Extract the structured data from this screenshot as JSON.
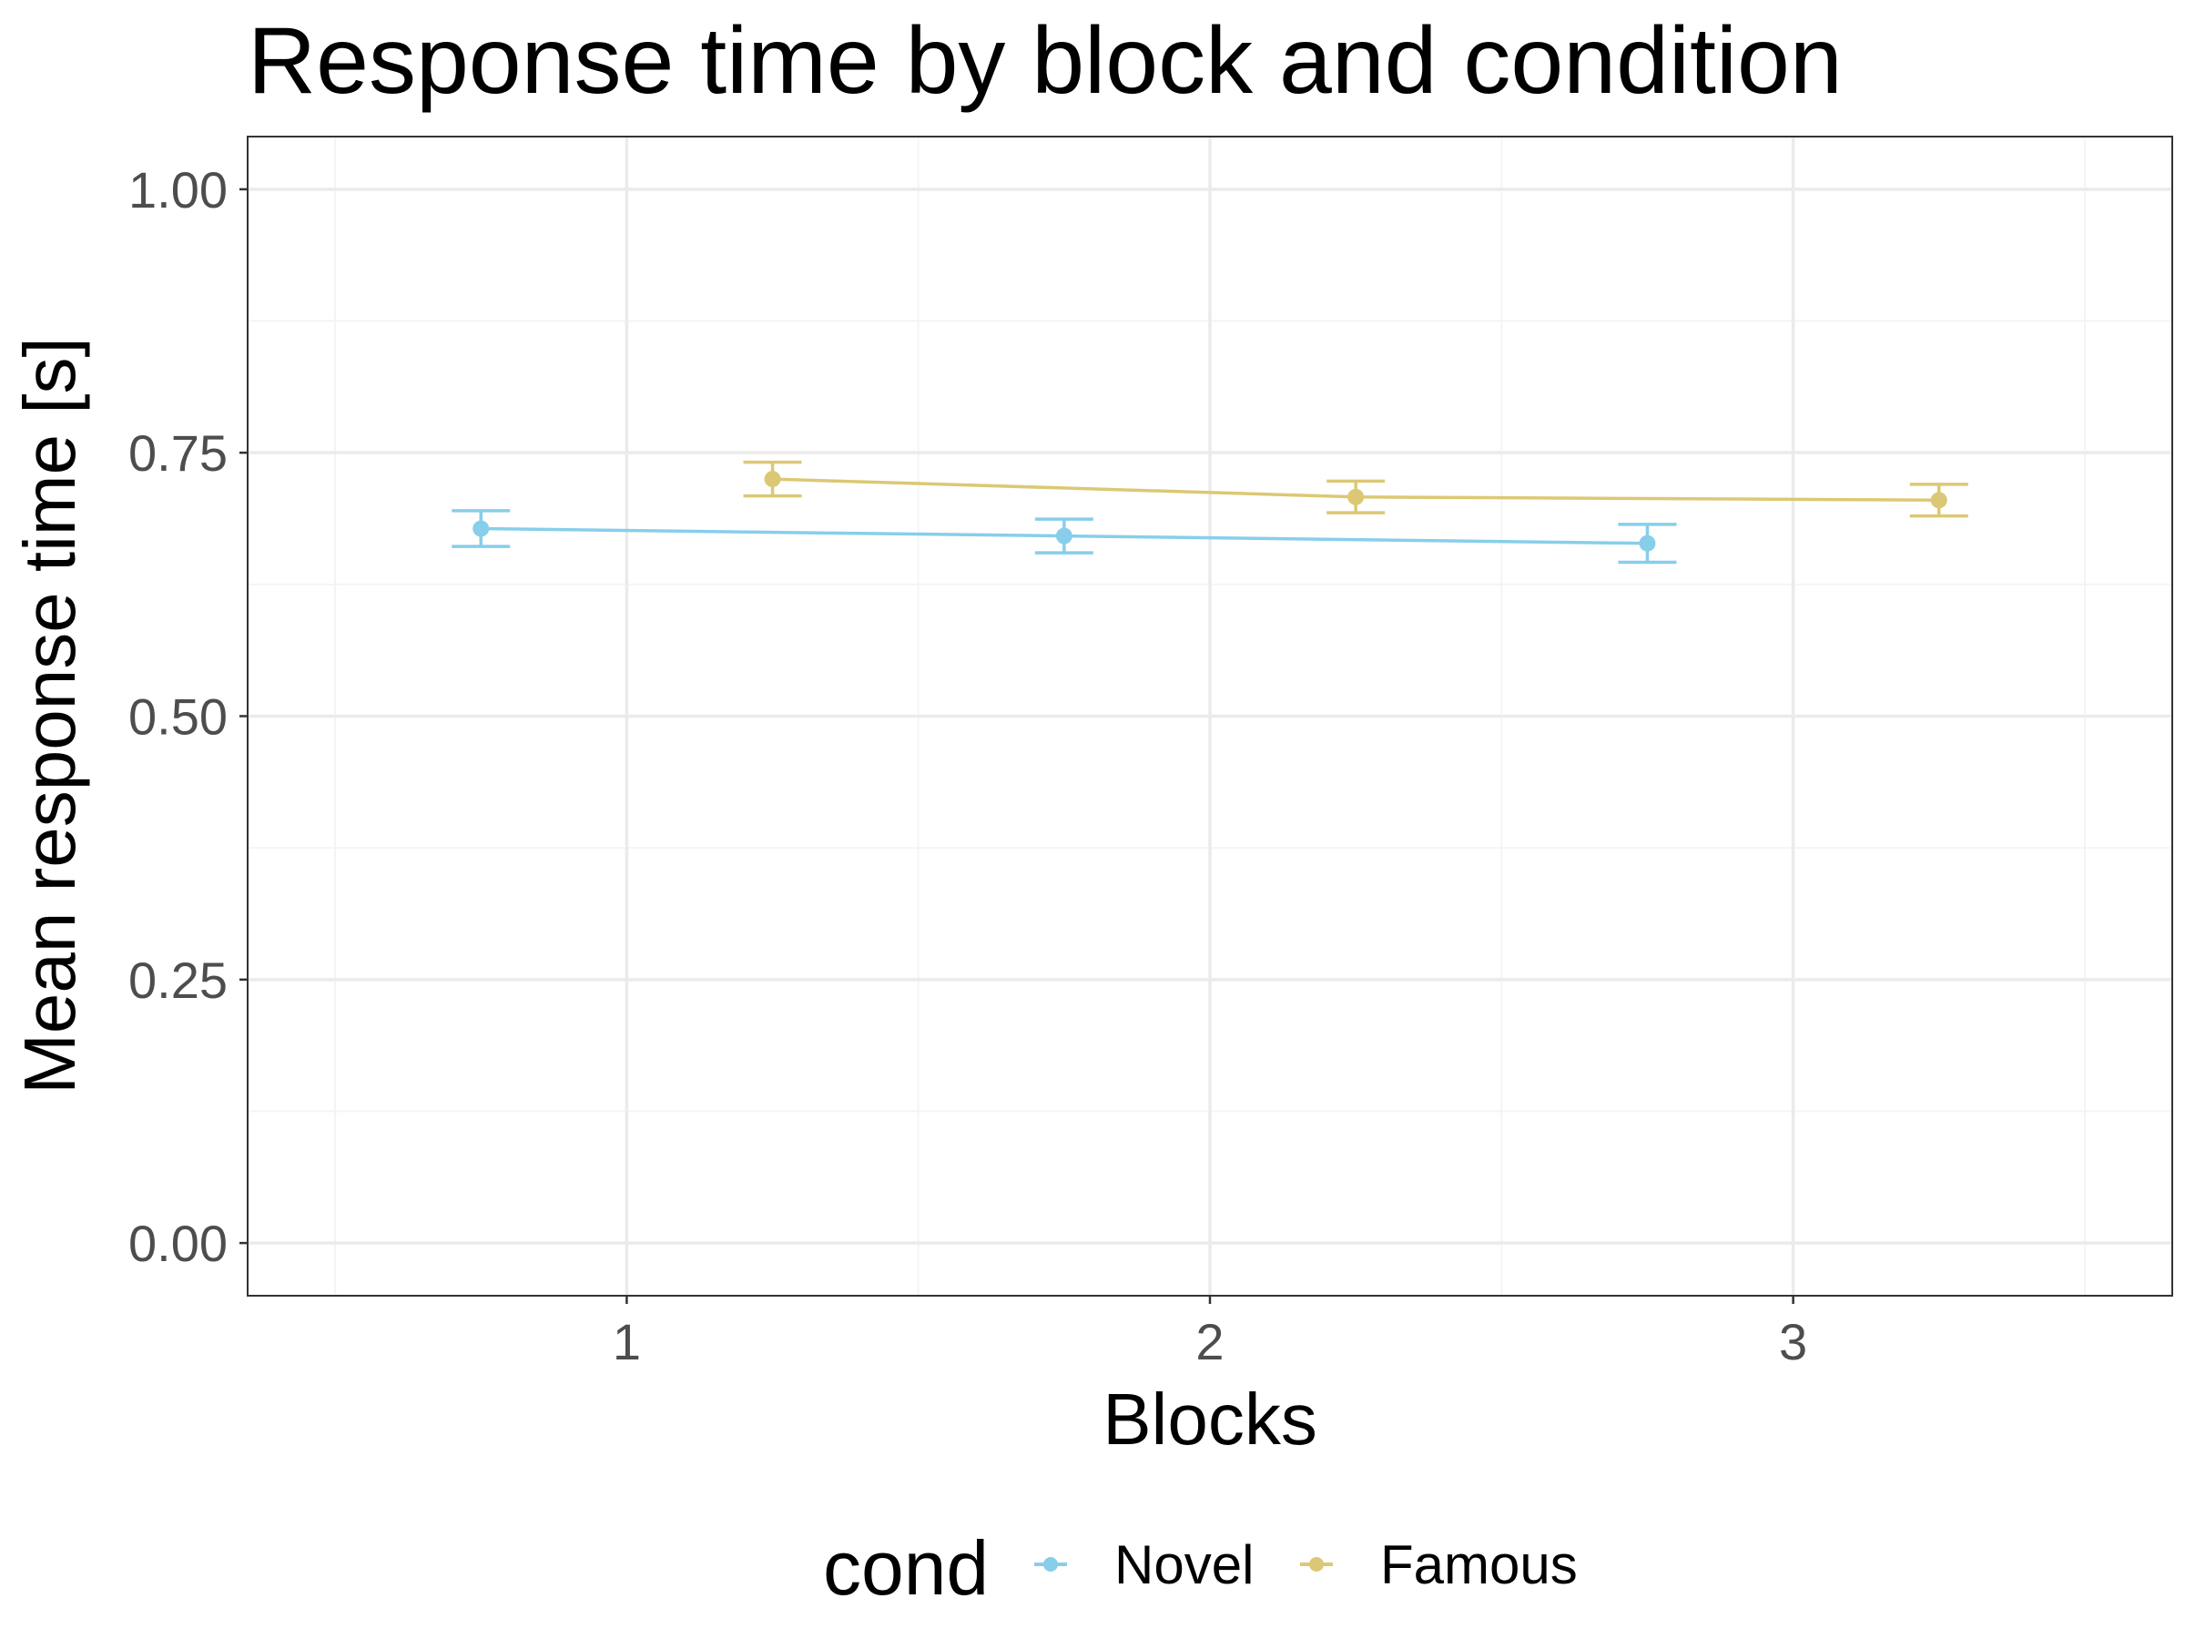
{
  "colors": {
    "Novel": "#87CEEB",
    "Famous": "#DCC874",
    "grid_major": "#ebebeb",
    "grid_minor": "#f4f4f4",
    "panel_border": "#333333",
    "tick_text": "#4d4d4d"
  },
  "chart_data": {
    "type": "line",
    "title": "Response time by block and condition",
    "xlabel": "Blocks",
    "ylabel": "Mean response time [s]",
    "x_categories": [
      "1",
      "2",
      "3"
    ],
    "xlim": [
      0.35,
      3.65
    ],
    "ylim": [
      -0.05,
      1.05
    ],
    "y_ticks": [
      "0.00",
      "0.25",
      "0.50",
      "0.75",
      "1.00"
    ],
    "grid": true,
    "legend": {
      "title": "cond",
      "position": "bottom",
      "entries": [
        "Novel",
        "Famous"
      ]
    },
    "series": [
      {
        "name": "Novel",
        "x": [
          0.75,
          1.75,
          2.75
        ],
        "y": [
          0.678,
          0.671,
          0.664
        ],
        "error": [
          0.017,
          0.016,
          0.018
        ]
      },
      {
        "name": "Famous",
        "x": [
          1.25,
          2.25,
          3.25
        ],
        "y": [
          0.725,
          0.708,
          0.705
        ],
        "error": [
          0.016,
          0.015,
          0.015
        ]
      }
    ]
  }
}
